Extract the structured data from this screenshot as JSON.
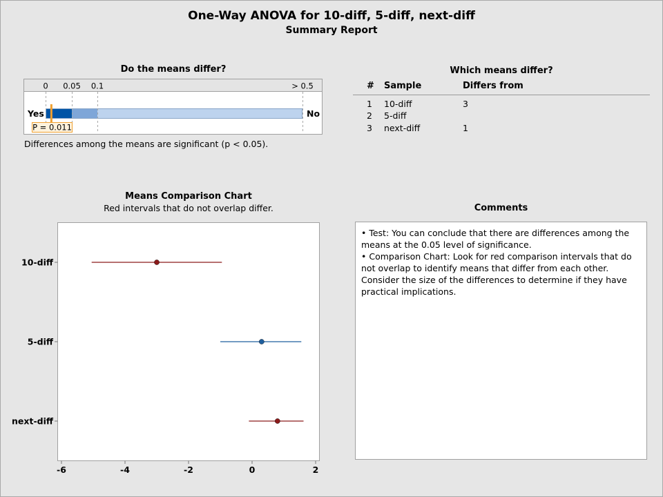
{
  "title": "One-Way ANOVA for 10-diff, 5-diff, next-diff",
  "subtitle": "Summary Report",
  "test": {
    "heading": "Do the means differ?",
    "scale_labels": [
      "0",
      "0.05",
      "0.1",
      "> 0.5"
    ],
    "scale_values": [
      0,
      0.05,
      0.1,
      0.5
    ],
    "yes_label": "Yes",
    "no_label": "No",
    "p_value": 0.011,
    "p_label": "P = 0.011",
    "conclusion": "Differences among the means are significant (p < 0.05).",
    "colors": {
      "dark": "#0054a6",
      "mid": "#7ea6d8",
      "light": "#bdd3ee",
      "marker": "#f0a030"
    }
  },
  "which_differ": {
    "heading": "Which means differ?",
    "columns": [
      "#",
      "Sample",
      "Differs from"
    ],
    "rows": [
      {
        "num": "1",
        "sample": "10-diff",
        "differs": "3"
      },
      {
        "num": "2",
        "sample": "5-diff",
        "differs": ""
      },
      {
        "num": "3",
        "sample": "next-diff",
        "differs": "1"
      }
    ]
  },
  "means_chart": {
    "heading": "Means Comparison Chart",
    "subheading": "Red intervals that do not overlap differ."
  },
  "comments": {
    "heading": "Comments",
    "lines": [
      "•  Test: You can conclude that there are differences among the means at the 0.05 level of significance.",
      "•  Comparison Chart: Look for red comparison intervals that do not overlap to identify means that differ from each other. Consider the size of the differences to determine if they have practical implications."
    ]
  },
  "chart_data": {
    "type": "scatter",
    "title": "Means Comparison Chart",
    "subtitle": "Red intervals that do not overlap differ.",
    "categories": [
      "10-diff",
      "5-diff",
      "next-diff"
    ],
    "series": [
      {
        "category": "10-diff",
        "mean": -3.0,
        "lower": -5.05,
        "upper": -0.95,
        "color": "#8b1a1a"
      },
      {
        "category": "5-diff",
        "mean": 0.3,
        "lower": -1.0,
        "upper": 1.55,
        "color": "#1f5f9e"
      },
      {
        "category": "next-diff",
        "mean": 0.8,
        "lower": -0.1,
        "upper": 1.62,
        "color": "#8b1a1a"
      }
    ],
    "xticks": [
      -6,
      -4,
      -2,
      0,
      2
    ],
    "xlim": [
      -6.1,
      2.1
    ],
    "grid": false
  }
}
